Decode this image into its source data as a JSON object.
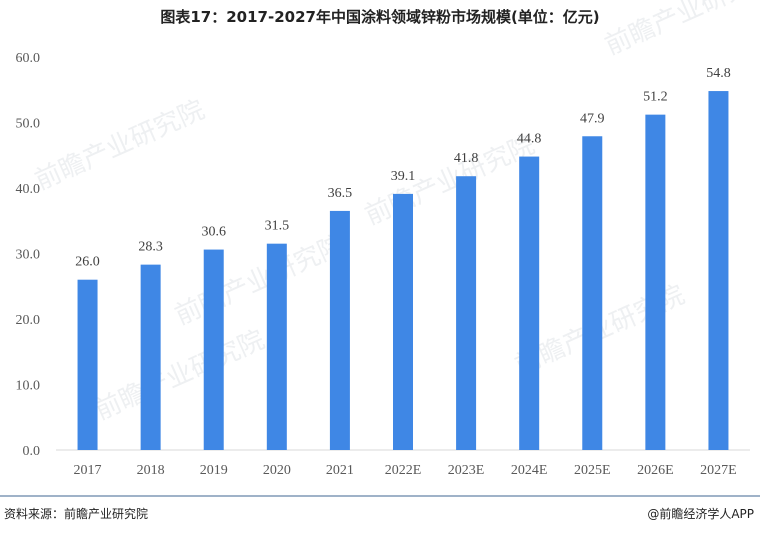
{
  "header": {
    "title": "图表17：2017-2027年中国涂料领域锌粉市场规模(单位：亿元)"
  },
  "footer": {
    "source": "资料来源：前瞻产业研究院",
    "brand": "@前瞻经济学人APP"
  },
  "watermark": {
    "text": "前瞻产业研究院"
  },
  "chart_data": {
    "type": "bar",
    "categories": [
      "2017",
      "2018",
      "2019",
      "2020",
      "2021",
      "2022E",
      "2023E",
      "2024E",
      "2025E",
      "2026E",
      "2027E"
    ],
    "values": [
      26.0,
      28.3,
      30.6,
      31.5,
      36.5,
      39.1,
      41.8,
      44.8,
      47.9,
      51.2,
      54.8
    ],
    "data_labels": [
      "26.0",
      "28.3",
      "30.6",
      "31.5",
      "36.5",
      "39.1",
      "41.8",
      "44.8",
      "47.9",
      "51.2",
      "54.8"
    ],
    "yticks": [
      "0.0",
      "10.0",
      "20.0",
      "30.0",
      "40.0",
      "50.0",
      "60.0"
    ],
    "ylim": [
      0,
      60
    ],
    "bar_color": "#3f87e5",
    "grid": false,
    "legend": "none",
    "title": "图表17：2017-2027年中国涂料领域锌粉市场规模(单位：亿元)",
    "xlabel": "",
    "ylabel": ""
  }
}
